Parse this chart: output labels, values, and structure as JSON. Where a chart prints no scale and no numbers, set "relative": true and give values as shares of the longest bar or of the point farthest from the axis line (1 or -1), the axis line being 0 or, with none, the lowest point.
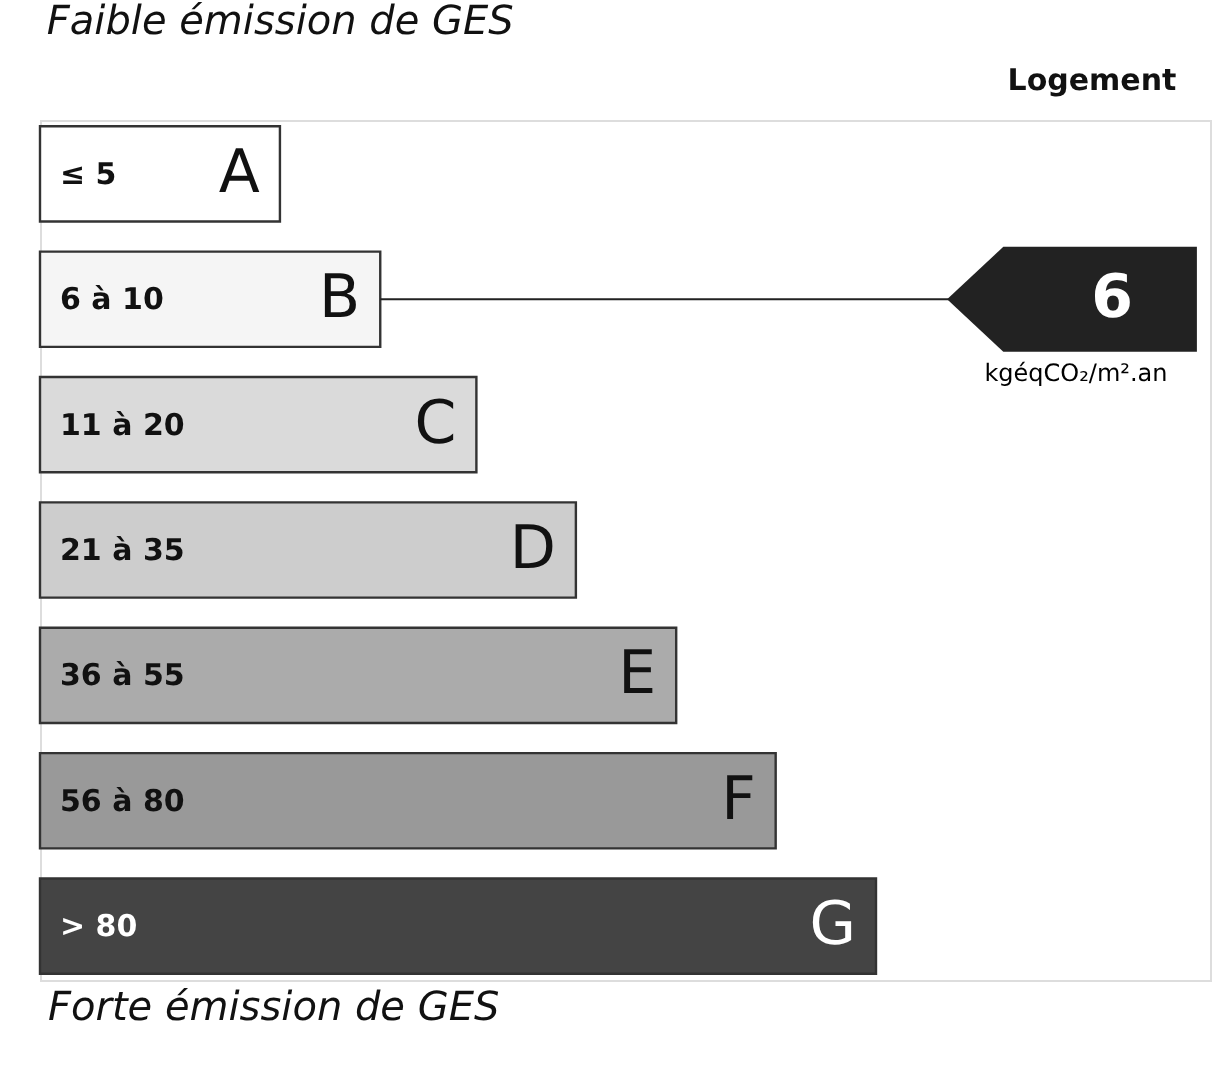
{
  "chart_data": {
    "type": "bar",
    "orientation": "horizontal",
    "relative": true,
    "title": "Faible émission de GES",
    "categories": [
      "A",
      "B",
      "C",
      "D",
      "E",
      "F",
      "G"
    ],
    "values": [
      0.287,
      0.407,
      0.522,
      0.641,
      0.761,
      0.88,
      1
    ],
    "colors": [
      "#ffffff",
      "#f5f5f5",
      "#dadada",
      "#cdcdcd",
      "#ababab",
      "#999999",
      "#444444"
    ],
    "ref_lines": [
      {
        "axis": "y",
        "value": "B",
        "label": "6",
        "color": "#222222"
      }
    ],
    "annotations": [
      "Forte émission de GES",
      "Logement",
      "kgéqCO₂/m².an",
      "≤ 5",
      "6 à 10",
      "11 à 20",
      "21 à 35",
      "36 à 55",
      "56 à 80",
      "> 80"
    ],
    "legend": false
  }
}
